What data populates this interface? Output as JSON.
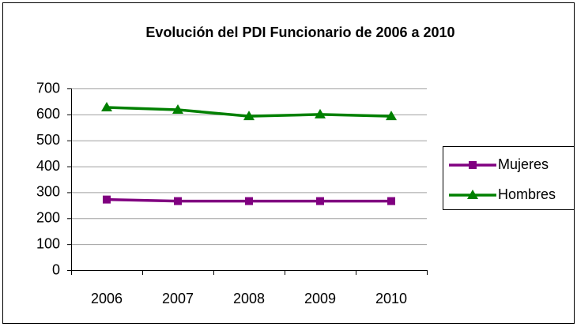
{
  "chart_data": {
    "type": "line",
    "title": "Evolución del PDI Funcionario de 2006 a 2010",
    "categories": [
      "2006",
      "2007",
      "2008",
      "2009",
      "2010"
    ],
    "series": [
      {
        "name": "Mujeres",
        "color": "#800080",
        "marker": "square",
        "values": [
          272,
          266,
          266,
          266,
          266
        ]
      },
      {
        "name": "Hombres",
        "color": "#008000",
        "marker": "triangle",
        "values": [
          627,
          618,
          593,
          600,
          593
        ]
      }
    ],
    "ylim": [
      0,
      700
    ],
    "yticks": [
      0,
      100,
      200,
      300,
      400,
      500,
      600,
      700
    ],
    "grid": true,
    "legend": "right"
  }
}
